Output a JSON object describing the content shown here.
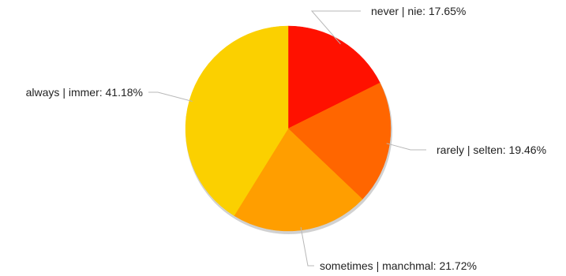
{
  "chart_data": {
    "type": "pie",
    "start_angle_deg": 0,
    "direction": "clockwise",
    "slices": [
      {
        "label": "never | nie: 17.65%",
        "value": 17.65,
        "color": "#ff1100"
      },
      {
        "label": "rarely | selten: 19.46%",
        "value": 19.46,
        "color": "#ff6600"
      },
      {
        "label": "sometimes | manchmal: 21.72%",
        "value": 21.72,
        "color": "#ff9e00"
      },
      {
        "label": "always | immer: 41.18%",
        "value": 41.18,
        "color": "#fbd000"
      }
    ]
  }
}
